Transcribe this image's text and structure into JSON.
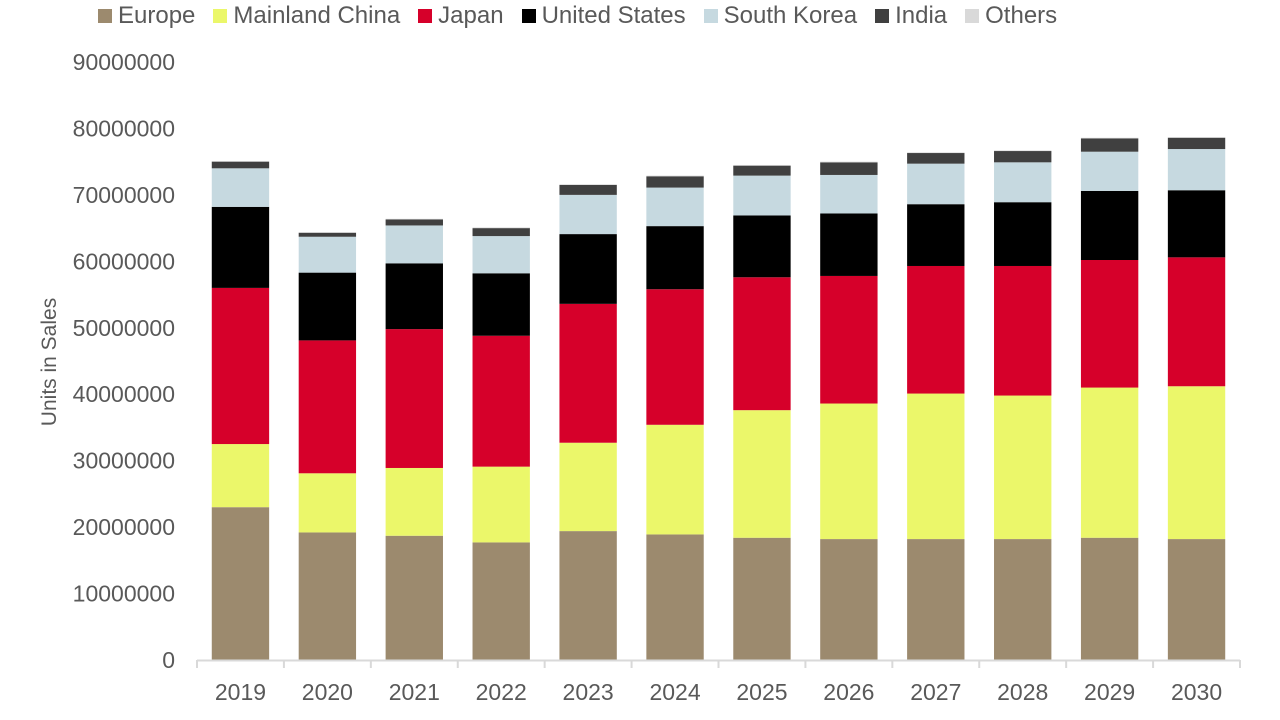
{
  "chart_data": {
    "type": "bar",
    "stacked": true,
    "title": "",
    "xlabel": "",
    "ylabel": "Units in Sales",
    "ylim": [
      0,
      90000000
    ],
    "yticks": [
      0,
      10000000,
      20000000,
      30000000,
      40000000,
      50000000,
      60000000,
      70000000,
      80000000,
      90000000
    ],
    "ytick_labels": [
      "0",
      "10000000",
      "20000000",
      "30000000",
      "40000000",
      "50000000",
      "60000000",
      "70000000",
      "80000000",
      "90000000"
    ],
    "grid": false,
    "legend_position": "top",
    "categories": [
      "2019",
      "2020",
      "2021",
      "2022",
      "2023",
      "2024",
      "2025",
      "2026",
      "2027",
      "2028",
      "2029",
      "2030"
    ],
    "series": [
      {
        "name": "Europe",
        "color": "#9c8a6e",
        "values": [
          23000000,
          19200000,
          18700000,
          17700000,
          19400000,
          18900000,
          18400000,
          18200000,
          18200000,
          18200000,
          18400000,
          18200000
        ]
      },
      {
        "name": "Mainland China",
        "color": "#ebf76a",
        "values": [
          9500000,
          8900000,
          10200000,
          11400000,
          13300000,
          16500000,
          19200000,
          20400000,
          21900000,
          21600000,
          22600000,
          23000000
        ]
      },
      {
        "name": "Japan",
        "color": "#d6002a",
        "values": [
          23500000,
          20000000,
          20900000,
          19700000,
          20900000,
          20400000,
          20000000,
          19200000,
          19200000,
          19500000,
          19200000,
          19400000
        ]
      },
      {
        "name": "United States",
        "color": "#000000",
        "values": [
          12200000,
          10200000,
          9900000,
          9400000,
          10500000,
          9500000,
          9300000,
          9400000,
          9300000,
          9600000,
          10400000,
          10100000
        ]
      },
      {
        "name": "South Korea",
        "color": "#c6d9e0",
        "values": [
          5800000,
          5400000,
          5700000,
          5600000,
          5900000,
          5800000,
          6000000,
          5800000,
          6100000,
          6000000,
          5900000,
          6200000
        ]
      },
      {
        "name": "India",
        "color": "#404040",
        "values": [
          1000000,
          600000,
          900000,
          1200000,
          1500000,
          1700000,
          1500000,
          1900000,
          1600000,
          1700000,
          2000000,
          1700000
        ]
      },
      {
        "name": "Others",
        "color": "#d9d9d9",
        "values": [
          100000,
          100000,
          100000,
          100000,
          100000,
          100000,
          100000,
          100000,
          100000,
          100000,
          100000,
          100000
        ]
      }
    ]
  }
}
